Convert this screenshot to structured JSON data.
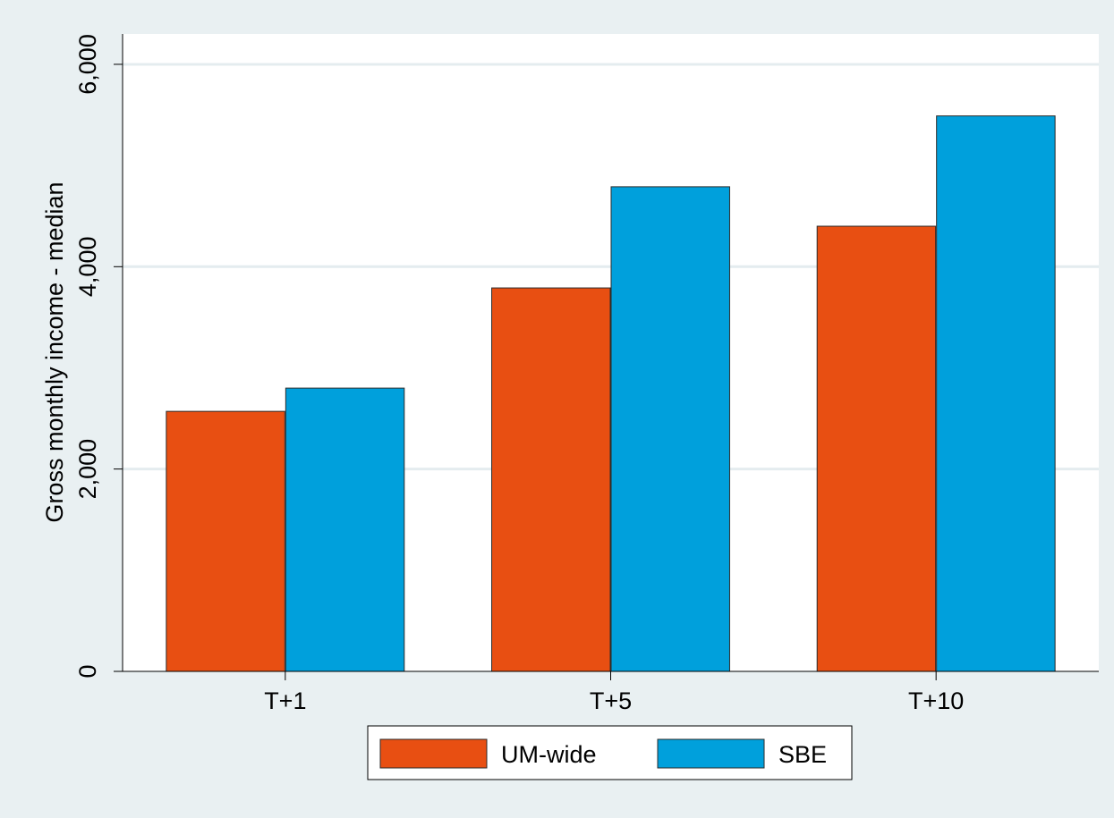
{
  "chart_data": {
    "type": "bar",
    "title": "",
    "xlabel": "",
    "ylabel": "Gross monthly income - median",
    "categories": [
      "T+1",
      "T+5",
      "T+10"
    ],
    "series": [
      {
        "name": "UM-wide",
        "color": "#e84f12",
        "values": [
          2570,
          3790,
          4400
        ]
      },
      {
        "name": "SBE",
        "color": "#00a0dc",
        "values": [
          2800,
          4790,
          5490
        ]
      }
    ],
    "ylim": [
      0,
      6300
    ],
    "yticks": [
      0,
      2000,
      4000,
      6000
    ],
    "ytick_labels": [
      "0",
      "2,000",
      "4,000",
      "6,000"
    ],
    "grid": true,
    "legend_position": "bottom",
    "colors": {
      "background": "#e9f0f2",
      "plot_area": "#ffffff",
      "grid": "#e4ecef"
    }
  }
}
